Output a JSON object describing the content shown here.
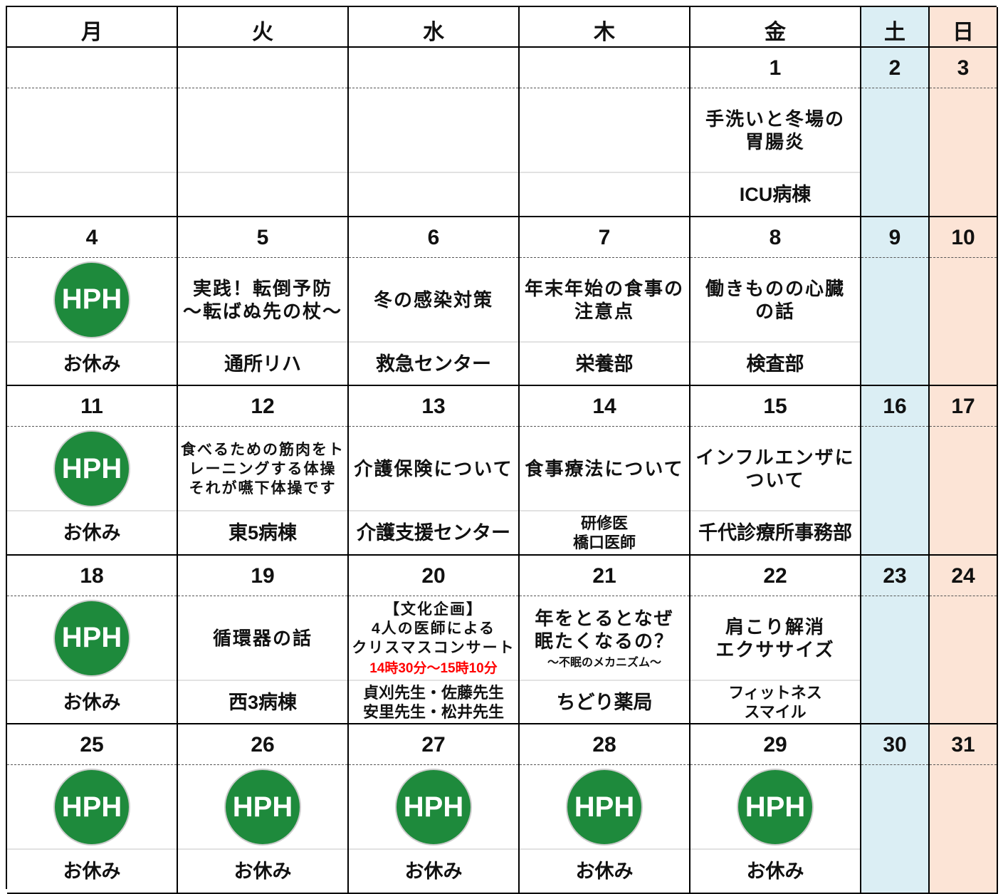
{
  "weekdays": [
    "月",
    "火",
    "水",
    "木",
    "金",
    "土",
    "日"
  ],
  "weeks": [
    {
      "days": [
        {},
        {},
        {},
        {},
        {
          "date": "1",
          "topic": [
            "手洗いと冬場の",
            "胃腸炎"
          ],
          "dept": [
            "ICU病棟"
          ]
        },
        {
          "date": "2"
        },
        {
          "date": "3"
        }
      ]
    },
    {
      "days": [
        {
          "date": "4",
          "logo": "HPH",
          "dept": [
            "お休み"
          ]
        },
        {
          "date": "5",
          "topic": [
            "実践！転倒予防",
            "～転ばぬ先の杖～"
          ],
          "dept": [
            "通所リハ"
          ]
        },
        {
          "date": "6",
          "topic": [
            "冬の感染対策"
          ],
          "dept": [
            "救急センター"
          ]
        },
        {
          "date": "7",
          "topic": [
            "年末年始の食事の",
            "注意点"
          ],
          "dept": [
            "栄養部"
          ]
        },
        {
          "date": "8",
          "topic": [
            "働きものの心臓",
            "の話"
          ],
          "dept": [
            "検査部"
          ]
        },
        {
          "date": "9"
        },
        {
          "date": "10"
        }
      ]
    },
    {
      "days": [
        {
          "date": "11",
          "logo": "HPH",
          "dept": [
            "お休み"
          ]
        },
        {
          "date": "12",
          "topic": [
            "食べるための筋肉をト",
            "レーニングする体操",
            "それが嚥下体操です"
          ],
          "dept": [
            "東5病棟"
          ]
        },
        {
          "date": "13",
          "topic": [
            "介護保険について"
          ],
          "dept": [
            "介護支援センター"
          ]
        },
        {
          "date": "14",
          "topic": [
            "食事療法について"
          ],
          "dept": [
            "研修医",
            "橋口医師"
          ]
        },
        {
          "date": "15",
          "topic": [
            "インフルエンザに",
            "ついて"
          ],
          "dept": [
            "千代診療所事務部"
          ]
        },
        {
          "date": "16"
        },
        {
          "date": "17"
        }
      ]
    },
    {
      "days": [
        {
          "date": "18",
          "logo": "HPH",
          "dept": [
            "お休み"
          ]
        },
        {
          "date": "19",
          "topic": [
            "循環器の話"
          ],
          "dept": [
            "西3病棟"
          ]
        },
        {
          "date": "20",
          "topic": [
            "【文化企画】",
            "4人の医師による",
            "クリスマスコンサート"
          ],
          "time": "14時30分～15時10分",
          "dept": [
            "貞刈先生・佐藤先生",
            "安里先生・松井先生"
          ]
        },
        {
          "date": "21",
          "topic": [
            "年をとるとなぜ",
            "眠たくなるの？"
          ],
          "subtitle": "～不眠のメカニズム～",
          "dept": [
            "ちどり薬局"
          ]
        },
        {
          "date": "22",
          "topic": [
            "肩こり解消",
            "エクササイズ"
          ],
          "dept": [
            "フィットネス",
            "スマイル"
          ]
        },
        {
          "date": "23"
        },
        {
          "date": "24"
        }
      ]
    },
    {
      "days": [
        {
          "date": "25",
          "logo": "HPH",
          "dept": [
            "お休み"
          ]
        },
        {
          "date": "26",
          "logo": "HPH",
          "dept": [
            "お休み"
          ]
        },
        {
          "date": "27",
          "logo": "HPH",
          "dept": [
            "お休み"
          ]
        },
        {
          "date": "28",
          "logo": "HPH",
          "dept": [
            "お休み"
          ]
        },
        {
          "date": "29",
          "logo": "HPH",
          "dept": [
            "お休み"
          ]
        },
        {
          "date": "30"
        },
        {
          "date": "31"
        }
      ]
    }
  ]
}
